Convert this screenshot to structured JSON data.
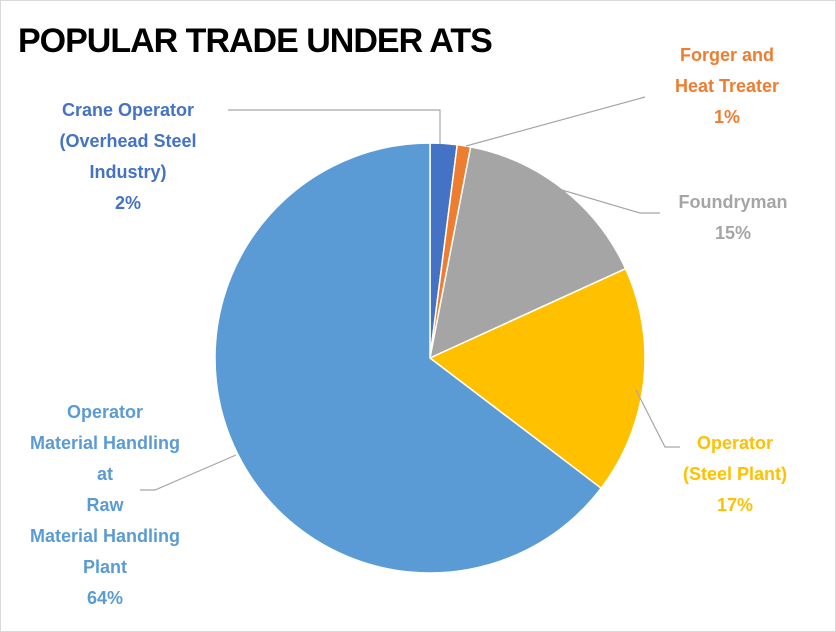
{
  "chart_data": {
    "type": "pie",
    "title": "POPULAR TRADE UNDER ATS",
    "categories": [
      "Crane Operator\n(Overhead Steel\nIndustry)",
      "Forger and\nHeat Treater",
      "Foundryman",
      "Operator\n(Steel Plant)",
      "Operator\nMaterial Handling\nat\nRaw\nMaterial Handling\nPlant"
    ],
    "values": [
      2,
      1,
      15,
      17,
      64
    ],
    "value_labels": [
      "2%",
      "1%",
      "15%",
      "17%",
      "64%"
    ],
    "colors": [
      "#4472c4",
      "#ed7d31",
      "#a5a5a5",
      "#ffc000",
      "#5b9bd5"
    ]
  }
}
